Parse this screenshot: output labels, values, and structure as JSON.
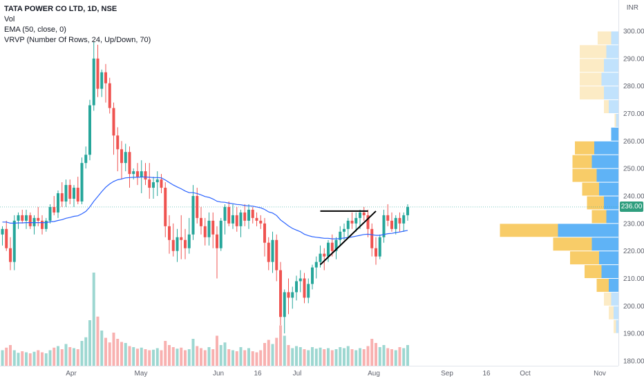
{
  "legend": {
    "ticker": "TATA POWER CO LTD, 1D, NSE",
    "vol": "Vol",
    "ema": "EMA (50, close, 0)",
    "vrvp": "VRVP (Number Of Rows, 24, Up/Down, 70)"
  },
  "colors": {
    "up": "#26a69a",
    "down": "#ef5350",
    "ema": "#2962ff",
    "vrvp_up": "#f5b82e",
    "vrvp_down": "#2196f3",
    "last_price_bg": "#2f9e7e"
  },
  "chart_data": {
    "type": "candlestick",
    "ylabel": "INR",
    "ylim": [
      178,
      305
    ],
    "yticks": [
      180,
      190,
      200,
      210,
      220,
      230,
      240,
      250,
      260,
      270,
      280,
      290,
      300
    ],
    "ytick_labels": [
      "180.00",
      "190.00",
      "200.00",
      "210.00",
      "220.00",
      "230.00",
      "240.00",
      "250.00",
      "260.00",
      "270.00",
      "280.00",
      "290.00",
      "300.00"
    ],
    "last_price": 236.0,
    "last_price_label": "236.00",
    "xtick_labels": [
      "Apr",
      "May",
      "Jun",
      "16",
      "Jul",
      "Aug",
      "Sep",
      "16",
      "Oct",
      "Nov"
    ],
    "candles": [
      [
        226,
        229,
        222,
        228
      ],
      [
        228,
        231,
        220,
        221
      ],
      [
        221,
        225,
        213,
        216
      ],
      [
        216,
        233,
        213,
        231
      ],
      [
        231,
        234,
        228,
        233
      ],
      [
        233,
        235,
        230,
        231
      ],
      [
        231,
        235,
        228,
        233
      ],
      [
        233,
        234,
        228,
        229
      ],
      [
        229,
        233,
        226,
        232
      ],
      [
        232,
        236,
        229,
        231
      ],
      [
        231,
        233,
        226,
        228
      ],
      [
        228,
        232,
        227,
        231
      ],
      [
        231,
        237,
        230,
        236
      ],
      [
        236,
        240,
        233,
        234
      ],
      [
        234,
        242,
        232,
        241
      ],
      [
        241,
        245,
        236,
        238
      ],
      [
        238,
        246,
        236,
        244
      ],
      [
        244,
        246,
        237,
        239
      ],
      [
        239,
        244,
        236,
        243
      ],
      [
        243,
        247,
        237,
        238
      ],
      [
        238,
        254,
        237,
        252
      ],
      [
        252,
        258,
        250,
        255
      ],
      [
        255,
        275,
        253,
        273
      ],
      [
        273,
        296,
        271,
        290
      ],
      [
        290,
        295,
        276,
        279
      ],
      [
        279,
        286,
        276,
        285
      ],
      [
        285,
        288,
        274,
        281
      ],
      [
        281,
        283,
        270,
        272
      ],
      [
        272,
        274,
        255,
        262
      ],
      [
        262,
        265,
        249,
        257
      ],
      [
        257,
        260,
        246,
        252
      ],
      [
        252,
        259,
        249,
        256
      ],
      [
        256,
        258,
        243,
        248
      ],
      [
        248,
        250,
        246,
        249
      ],
      [
        249,
        252,
        244,
        247
      ],
      [
        247,
        253,
        241,
        249
      ],
      [
        249,
        252,
        244,
        246
      ],
      [
        246,
        252,
        239,
        243
      ],
      [
        243,
        247,
        239,
        245
      ],
      [
        245,
        249,
        240,
        246
      ],
      [
        246,
        248,
        241,
        243
      ],
      [
        243,
        245,
        225,
        229
      ],
      [
        229,
        233,
        219,
        224
      ],
      [
        224,
        230,
        218,
        220
      ],
      [
        220,
        228,
        216,
        225
      ],
      [
        225,
        233,
        217,
        224
      ],
      [
        224,
        228,
        217,
        221
      ],
      [
        221,
        232,
        219,
        226
      ],
      [
        226,
        244,
        224,
        240
      ],
      [
        240,
        243,
        230,
        232
      ],
      [
        232,
        236,
        226,
        229
      ],
      [
        229,
        232,
        222,
        225
      ],
      [
        225,
        234,
        222,
        231
      ],
      [
        231,
        234,
        221,
        226
      ],
      [
        226,
        229,
        210,
        221
      ],
      [
        221,
        232,
        220,
        231
      ],
      [
        231,
        237,
        226,
        236
      ],
      [
        236,
        238,
        229,
        230
      ],
      [
        230,
        237,
        228,
        233
      ],
      [
        233,
        236,
        227,
        229
      ],
      [
        229,
        235,
        225,
        234
      ],
      [
        234,
        237,
        229,
        231
      ],
      [
        231,
        237,
        228,
        235
      ],
      [
        235,
        236,
        230,
        232
      ],
      [
        232,
        234,
        229,
        231
      ],
      [
        231,
        233,
        228,
        230
      ],
      [
        230,
        232,
        218,
        223
      ],
      [
        223,
        225,
        213,
        216
      ],
      [
        216,
        227,
        212,
        224
      ],
      [
        224,
        226,
        209,
        213
      ],
      [
        213,
        216,
        193,
        196
      ],
      [
        196,
        206,
        190,
        205
      ],
      [
        205,
        210,
        197,
        203
      ],
      [
        203,
        207,
        199,
        205
      ],
      [
        205,
        211,
        202,
        209
      ],
      [
        209,
        213,
        205,
        210
      ],
      [
        210,
        212,
        201,
        203
      ],
      [
        203,
        210,
        201,
        208
      ],
      [
        208,
        215,
        206,
        214
      ],
      [
        214,
        218,
        210,
        216
      ],
      [
        216,
        222,
        214,
        219
      ],
      [
        219,
        221,
        213,
        218
      ],
      [
        218,
        224,
        216,
        223
      ],
      [
        223,
        226,
        218,
        220
      ],
      [
        220,
        225,
        217,
        224
      ],
      [
        224,
        229,
        222,
        227
      ],
      [
        227,
        230,
        224,
        228
      ],
      [
        228,
        232,
        225,
        231
      ],
      [
        231,
        234,
        228,
        230
      ],
      [
        230,
        234,
        227,
        232
      ],
      [
        232,
        235,
        228,
        234
      ],
      [
        234,
        236,
        231,
        233
      ],
      [
        233,
        235,
        225,
        228
      ],
      [
        228,
        230,
        218,
        221
      ],
      [
        221,
        225,
        215,
        218
      ],
      [
        218,
        226,
        217,
        225
      ],
      [
        225,
        235,
        223,
        233
      ],
      [
        233,
        237,
        229,
        231
      ],
      [
        231,
        234,
        227,
        228
      ],
      [
        228,
        233,
        226,
        232
      ],
      [
        232,
        234,
        227,
        230
      ],
      [
        230,
        234,
        227,
        233
      ],
      [
        233,
        237,
        231,
        236
      ]
    ],
    "ema": [
      230.5,
      230.5,
      230.1,
      230.1,
      230.2,
      230.2,
      230.3,
      230.3,
      230.3,
      230.3,
      230.3,
      230.3,
      230.6,
      230.7,
      231.1,
      231.4,
      231.9,
      232.2,
      232.6,
      232.8,
      233.5,
      234.4,
      236.0,
      238.1,
      239.8,
      241.6,
      243.2,
      244.4,
      245.3,
      245.9,
      246.2,
      246.6,
      246.7,
      246.8,
      246.8,
      246.9,
      246.9,
      246.8,
      246.7,
      246.7,
      246.6,
      245.8,
      244.9,
      244.0,
      243.3,
      242.6,
      241.8,
      241.2,
      241.2,
      240.9,
      240.4,
      239.8,
      239.5,
      238.9,
      238.1,
      237.8,
      237.7,
      237.4,
      237.2,
      236.9,
      236.8,
      236.5,
      236.4,
      236.3,
      236.0,
      235.7,
      235.1,
      234.2,
      233.8,
      232.9,
      231.3,
      230.2,
      229.1,
      228.2,
      227.6,
      227.0,
      226.1,
      225.6,
      225.2,
      225.0,
      224.8,
      224.6,
      224.6,
      224.4,
      224.4,
      224.5,
      224.7,
      224.9,
      225.1,
      225.4,
      225.7,
      226.0,
      226.1,
      225.9,
      225.7,
      225.7,
      226.0,
      226.3,
      226.4,
      226.7,
      226.9,
      227.2,
      227.5
    ],
    "volume": [
      30,
      35,
      40,
      30,
      25,
      28,
      26,
      24,
      27,
      30,
      26,
      24,
      30,
      35,
      38,
      32,
      42,
      36,
      34,
      32,
      48,
      55,
      88,
      180,
      95,
      68,
      54,
      45,
      64,
      52,
      46,
      44,
      38,
      36,
      33,
      35,
      32,
      30,
      31,
      34,
      30,
      48,
      40,
      36,
      33,
      35,
      30,
      32,
      52,
      38,
      34,
      30,
      36,
      32,
      58,
      40,
      45,
      32,
      30,
      28,
      36,
      30,
      34,
      28,
      26,
      30,
      44,
      50,
      42,
      54,
      78,
      58,
      40,
      34,
      38,
      36,
      32,
      30,
      36,
      33,
      35,
      32,
      34,
      30,
      32,
      36,
      34,
      38,
      32,
      30,
      34,
      32,
      38,
      52,
      44,
      36,
      40,
      34,
      32,
      30,
      36,
      34,
      40
    ],
    "volume_ylim": [
      0,
      180
    ],
    "pattern_lines": [
      [
        [
          80,
          234.5
        ],
        [
          92,
          234.5
        ]
      ],
      [
        [
          80,
          215
        ],
        [
          94,
          234.5
        ]
      ]
    ],
    "vrvp": [
      {
        "price": 297.5,
        "up": 2.8,
        "down": 1.5
      },
      {
        "price": 292.5,
        "up": 5.5,
        "down": 2.5
      },
      {
        "price": 287.5,
        "up": 5.0,
        "down": 3.0
      },
      {
        "price": 282.5,
        "up": 4.5,
        "down": 3.5
      },
      {
        "price": 277.5,
        "up": 5.0,
        "down": 3.0
      },
      {
        "price": 272.5,
        "up": 1.0,
        "down": 2.0
      },
      {
        "price": 267.5,
        "up": 0.3,
        "down": 0.5
      },
      {
        "price": 262.5,
        "up": 0,
        "down": 1.5
      },
      {
        "price": 257.5,
        "up": 4.0,
        "down": 5.0
      },
      {
        "price": 252.5,
        "up": 4.0,
        "down": 5.5
      },
      {
        "price": 247.5,
        "up": 5.0,
        "down": 4.5
      },
      {
        "price": 242.5,
        "up": 3.5,
        "down": 4.0
      },
      {
        "price": 237.5,
        "up": 3.5,
        "down": 3.0
      },
      {
        "price": 232.5,
        "up": 3.0,
        "down": 2.5
      },
      {
        "price": 227.5,
        "up": 12.0,
        "down": 12.5
      },
      {
        "price": 222.5,
        "up": 8.0,
        "down": 5.5
      },
      {
        "price": 217.5,
        "up": 6.0,
        "down": 4.0
      },
      {
        "price": 212.5,
        "up": 3.5,
        "down": 3.5
      },
      {
        "price": 207.5,
        "up": 2.5,
        "down": 2.0
      },
      {
        "price": 202.5,
        "up": 1.5,
        "down": 1.5
      },
      {
        "price": 197.5,
        "up": 1.0,
        "down": 1.0
      },
      {
        "price": 192.5,
        "up": 0.5,
        "down": 0.5
      }
    ],
    "vrvp_faded_above": 265,
    "vrvp_faded_below": 205
  }
}
